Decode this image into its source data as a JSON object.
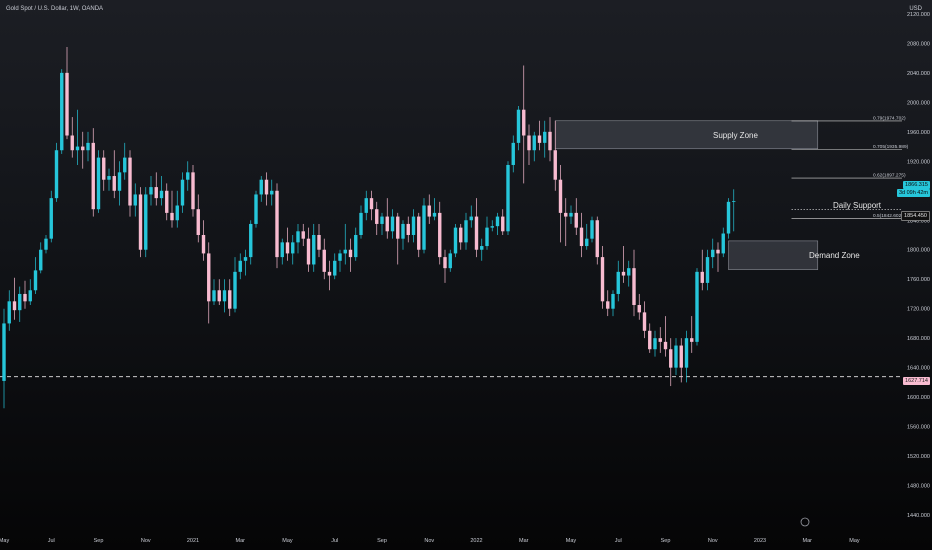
{
  "header": {
    "symbol_title": "Gold Spot / U.S. Dollar, 1W, OANDA",
    "currency": "USD"
  },
  "price_axis": {
    "ticks": [
      "2120.000",
      "2080.000",
      "2040.000",
      "2000.000",
      "1960.000",
      "1920.000",
      "1880.000",
      "1840.000",
      "1800.000",
      "1760.000",
      "1720.000",
      "1680.000",
      "1640.000",
      "1600.000",
      "1560.000",
      "1520.000",
      "1480.000",
      "1440.000"
    ],
    "tick_values": [
      2120,
      2080,
      2040,
      2000,
      1960,
      1920,
      1880,
      1840,
      1800,
      1760,
      1720,
      1680,
      1640,
      1600,
      1560,
      1520,
      1480,
      1440
    ],
    "range": [
      1436,
      2128
    ]
  },
  "time_axis": {
    "labels": [
      "May",
      "Jul",
      "Sep",
      "Nov",
      "2021",
      "Mar",
      "May",
      "Jul",
      "Sep",
      "Nov",
      "2022",
      "Mar",
      "May",
      "Jul",
      "Sep",
      "Nov",
      "2023",
      "Mar",
      "May"
    ],
    "label_bars": [
      0,
      9,
      18,
      27,
      36,
      45,
      54,
      63,
      72,
      81,
      90,
      99,
      108,
      117,
      126,
      135,
      144,
      153,
      162
    ]
  },
  "badges": {
    "current_price": "1866.315",
    "current_countdown": "3d 09h 42m",
    "support_price": "1854.450",
    "baseline_price": "1627.714"
  },
  "fib_levels": [
    {
      "label": "0.79(1974.702)",
      "price": 1974.7
    },
    {
      "label": "0.705(1935.989)",
      "price": 1936.0
    },
    {
      "label": "0.62(1897.275)",
      "price": 1897.3
    },
    {
      "label": "0.5(1842.602)",
      "price": 1842.6
    }
  ],
  "annotations": {
    "supply_zone": "Supply Zone",
    "demand_zone": "Demand Zone",
    "daily_support": "Daily Support"
  },
  "zones": {
    "supply": {
      "from_bar": 105,
      "to_bar": 155,
      "low": 1937,
      "high": 1975
    },
    "demand": {
      "from_bar": 138,
      "to_bar": 155,
      "low": 1773,
      "high": 1812
    }
  },
  "levels": {
    "daily_support": 1854.45,
    "baseline": 1627.714
  },
  "colors": {
    "up": "#26c6da",
    "down": "#f8bbd0",
    "zone_fill": "#3c3f47",
    "zone_border": "#8a8d95",
    "text": "#c9ccd4",
    "current_badge": "#26c6da"
  },
  "chart_data": {
    "type": "candlestick",
    "title": "Gold Spot / U.S. Dollar, 1W, OANDA",
    "timeframe": "1W",
    "x_start": "2020-05",
    "ylim": [
      1436,
      2128
    ],
    "ohlc": [
      [
        1622,
        1720,
        1585,
        1700
      ],
      [
        1700,
        1745,
        1690,
        1730
      ],
      [
        1730,
        1762,
        1705,
        1718
      ],
      [
        1718,
        1750,
        1702,
        1740
      ],
      [
        1740,
        1758,
        1720,
        1730
      ],
      [
        1730,
        1760,
        1725,
        1745
      ],
      [
        1745,
        1790,
        1740,
        1772
      ],
      [
        1772,
        1810,
        1768,
        1800
      ],
      [
        1800,
        1820,
        1795,
        1815
      ],
      [
        1815,
        1880,
        1810,
        1870
      ],
      [
        1870,
        1945,
        1865,
        1935
      ],
      [
        1935,
        2045,
        1930,
        2040
      ],
      [
        2040,
        2075,
        1950,
        1955
      ],
      [
        1955,
        1980,
        1925,
        1935
      ],
      [
        1935,
        1990,
        1915,
        1940
      ],
      [
        1940,
        1960,
        1910,
        1935
      ],
      [
        1935,
        1960,
        1920,
        1945
      ],
      [
        1945,
        1965,
        1845,
        1855
      ],
      [
        1855,
        1935,
        1850,
        1925
      ],
      [
        1925,
        1935,
        1880,
        1895
      ],
      [
        1895,
        1910,
        1880,
        1900
      ],
      [
        1900,
        1935,
        1870,
        1880
      ],
      [
        1880,
        1920,
        1860,
        1905
      ],
      [
        1905,
        1945,
        1895,
        1925
      ],
      [
        1925,
        1935,
        1845,
        1860
      ],
      [
        1860,
        1890,
        1845,
        1875
      ],
      [
        1875,
        1885,
        1790,
        1800
      ],
      [
        1800,
        1885,
        1790,
        1875
      ],
      [
        1875,
        1900,
        1860,
        1885
      ],
      [
        1885,
        1905,
        1860,
        1870
      ],
      [
        1870,
        1900,
        1860,
        1880
      ],
      [
        1880,
        1890,
        1840,
        1850
      ],
      [
        1850,
        1880,
        1830,
        1840
      ],
      [
        1840,
        1880,
        1830,
        1860
      ],
      [
        1860,
        1905,
        1850,
        1895
      ],
      [
        1895,
        1920,
        1880,
        1905
      ],
      [
        1905,
        1915,
        1845,
        1855
      ],
      [
        1855,
        1875,
        1810,
        1820
      ],
      [
        1820,
        1840,
        1785,
        1795
      ],
      [
        1795,
        1810,
        1700,
        1730
      ],
      [
        1730,
        1760,
        1725,
        1745
      ],
      [
        1745,
        1760,
        1725,
        1730
      ],
      [
        1730,
        1760,
        1715,
        1745
      ],
      [
        1745,
        1760,
        1710,
        1720
      ],
      [
        1720,
        1790,
        1715,
        1770
      ],
      [
        1770,
        1795,
        1760,
        1785
      ],
      [
        1785,
        1800,
        1765,
        1790
      ],
      [
        1790,
        1840,
        1780,
        1835
      ],
      [
        1835,
        1880,
        1830,
        1875
      ],
      [
        1875,
        1900,
        1865,
        1895
      ],
      [
        1895,
        1905,
        1860,
        1875
      ],
      [
        1875,
        1895,
        1860,
        1880
      ],
      [
        1880,
        1890,
        1775,
        1790
      ],
      [
        1790,
        1815,
        1780,
        1810
      ],
      [
        1810,
        1830,
        1785,
        1795
      ],
      [
        1795,
        1820,
        1780,
        1810
      ],
      [
        1810,
        1835,
        1795,
        1825
      ],
      [
        1825,
        1835,
        1805,
        1815
      ],
      [
        1815,
        1830,
        1770,
        1780
      ],
      [
        1780,
        1835,
        1770,
        1820
      ],
      [
        1820,
        1835,
        1790,
        1800
      ],
      [
        1800,
        1815,
        1760,
        1770
      ],
      [
        1770,
        1785,
        1745,
        1765
      ],
      [
        1765,
        1795,
        1760,
        1785
      ],
      [
        1785,
        1800,
        1770,
        1795
      ],
      [
        1795,
        1835,
        1780,
        1800
      ],
      [
        1800,
        1815,
        1770,
        1790
      ],
      [
        1790,
        1830,
        1785,
        1820
      ],
      [
        1820,
        1860,
        1815,
        1850
      ],
      [
        1850,
        1880,
        1840,
        1870
      ],
      [
        1870,
        1880,
        1840,
        1855
      ],
      [
        1855,
        1865,
        1820,
        1835
      ],
      [
        1835,
        1850,
        1820,
        1845
      ],
      [
        1845,
        1870,
        1815,
        1825
      ],
      [
        1825,
        1855,
        1815,
        1845
      ],
      [
        1845,
        1850,
        1780,
        1815
      ],
      [
        1815,
        1840,
        1800,
        1835
      ],
      [
        1835,
        1845,
        1810,
        1820
      ],
      [
        1820,
        1855,
        1810,
        1845
      ],
      [
        1845,
        1850,
        1790,
        1800
      ],
      [
        1800,
        1870,
        1795,
        1860
      ],
      [
        1860,
        1875,
        1835,
        1845
      ],
      [
        1845,
        1870,
        1840,
        1850
      ],
      [
        1850,
        1865,
        1780,
        1790
      ],
      [
        1790,
        1800,
        1755,
        1775
      ],
      [
        1775,
        1800,
        1770,
        1795
      ],
      [
        1795,
        1835,
        1790,
        1830
      ],
      [
        1830,
        1835,
        1800,
        1810
      ],
      [
        1810,
        1850,
        1800,
        1840
      ],
      [
        1840,
        1860,
        1830,
        1845
      ],
      [
        1845,
        1870,
        1790,
        1800
      ],
      [
        1800,
        1815,
        1785,
        1805
      ],
      [
        1805,
        1845,
        1800,
        1830
      ],
      [
        1830,
        1840,
        1825,
        1832
      ],
      [
        1832,
        1850,
        1820,
        1845
      ],
      [
        1845,
        1855,
        1820,
        1825
      ],
      [
        1825,
        1920,
        1820,
        1915
      ],
      [
        1915,
        1955,
        1905,
        1945
      ],
      [
        1945,
        1995,
        1935,
        1990
      ],
      [
        1990,
        2050,
        1890,
        1955
      ],
      [
        1955,
        1970,
        1915,
        1935
      ],
      [
        1935,
        1960,
        1920,
        1955
      ],
      [
        1955,
        1975,
        1935,
        1945
      ],
      [
        1945,
        1975,
        1925,
        1960
      ],
      [
        1960,
        1980,
        1920,
        1935
      ],
      [
        1935,
        1975,
        1880,
        1895
      ],
      [
        1895,
        1915,
        1810,
        1850
      ],
      [
        1850,
        1870,
        1805,
        1845
      ],
      [
        1845,
        1860,
        1835,
        1850
      ],
      [
        1850,
        1870,
        1820,
        1830
      ],
      [
        1830,
        1850,
        1790,
        1805
      ],
      [
        1805,
        1835,
        1800,
        1815
      ],
      [
        1815,
        1845,
        1810,
        1840
      ],
      [
        1840,
        1845,
        1780,
        1790
      ],
      [
        1790,
        1805,
        1720,
        1730
      ],
      [
        1730,
        1745,
        1710,
        1720
      ],
      [
        1720,
        1745,
        1710,
        1740
      ],
      [
        1740,
        1785,
        1730,
        1770
      ],
      [
        1770,
        1805,
        1755,
        1765
      ],
      [
        1765,
        1785,
        1750,
        1775
      ],
      [
        1775,
        1800,
        1710,
        1725
      ],
      [
        1725,
        1740,
        1705,
        1715
      ],
      [
        1715,
        1730,
        1680,
        1690
      ],
      [
        1690,
        1700,
        1660,
        1665
      ],
      [
        1665,
        1690,
        1655,
        1680
      ],
      [
        1680,
        1695,
        1660,
        1675
      ],
      [
        1675,
        1710,
        1655,
        1665
      ],
      [
        1665,
        1680,
        1615,
        1640
      ],
      [
        1640,
        1680,
        1630,
        1670
      ],
      [
        1670,
        1680,
        1620,
        1640
      ],
      [
        1640,
        1690,
        1620,
        1680
      ],
      [
        1680,
        1710,
        1660,
        1675
      ],
      [
        1675,
        1775,
        1670,
        1770
      ],
      [
        1770,
        1800,
        1745,
        1755
      ],
      [
        1755,
        1800,
        1745,
        1790
      ],
      [
        1790,
        1815,
        1775,
        1800
      ],
      [
        1800,
        1810,
        1770,
        1795
      ],
      [
        1795,
        1830,
        1790,
        1822
      ],
      [
        1822,
        1870,
        1815,
        1865
      ],
      [
        1865,
        1882,
        1825,
        1866
      ]
    ]
  }
}
